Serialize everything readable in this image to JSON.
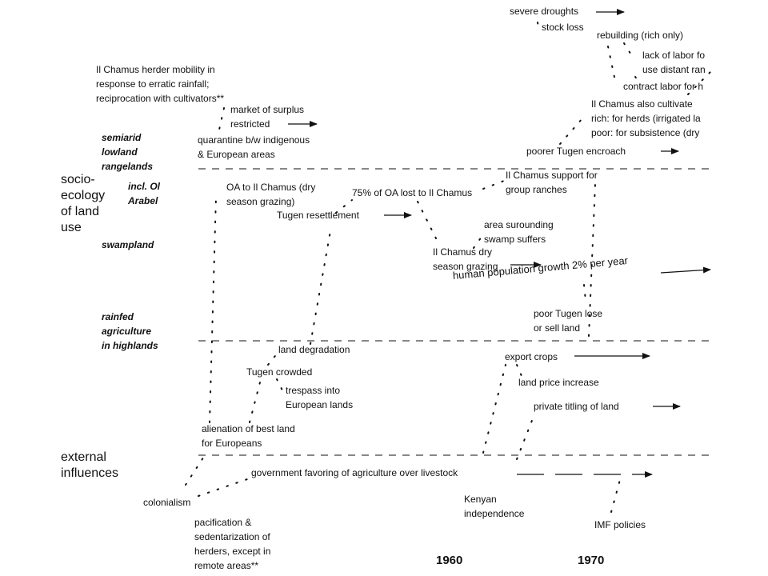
{
  "rows": {
    "socio_ecology": "socio-\necology\nof land\nuse",
    "semiarid": "semiarid\nlowland\nrangelands",
    "incl_ol_arabel": "incl. Ol\nArabel",
    "swampland": "swampland",
    "rainfed": "rainfed\nagriculture\nin highlands",
    "external": "external\ninfluences"
  },
  "years": {
    "y1960": "1960",
    "y1970": "1970"
  },
  "events": {
    "herder_mobility": "Il Chamus herder mobility in\nresponse to erratic rainfall;\nreciprocation with cultivators**",
    "market_surplus": "market of surplus\nrestricted",
    "quarantine": "quarantine b/w indigenous\n& European areas",
    "oa_to_il_chamus": "OA to Il Chamus (dry\nseason grazing)",
    "tugen_resettlement": "Tugen resettlement",
    "oa_lost": "75% of OA lost to Il Chamus",
    "group_ranches": "Il Chamus support for\ngroup ranches",
    "swamp_suffers": "area surounding\nswamp suffers",
    "dry_season_grazing": "Il Chamus dry\nseason grazing",
    "population_growth": "human population growth 2% per year",
    "severe_droughts": "severe droughts",
    "stock_loss": "stock loss",
    "rebuilding": "rebuilding (rich only)",
    "lack_of_labor": "lack of labor fo\nuse distant ran",
    "contract_labor": "contract labor for h",
    "also_cultivate": "Il Chamus also cultivate\nrich:  for herds (irrigated la\npoor: for subsistence (dry",
    "poorer_tugen": "poorer Tugen encroach",
    "poor_tugen_lose": "poor Tugen lose\nor sell land",
    "land_degradation": "land degradation",
    "tugen_crowded": "Tugen crowded",
    "trespass": "trespass into\nEuropean lands",
    "export_crops": "export crops",
    "land_price": "land price increase",
    "private_titling": "private titling of land",
    "alienation": "alienation of best land\nfor Europeans",
    "gov_favoring": "government favoring of agriculture over livestock",
    "colonialism": "colonialism",
    "pacification": "pacification &\nsedentarization of\nherders, except in\nremote areas**",
    "kenyan_independence": "Kenyan\nindependence",
    "imf_policies": "IMF policies"
  },
  "colors": {
    "ink": "#111111",
    "background": "#ffffff"
  }
}
